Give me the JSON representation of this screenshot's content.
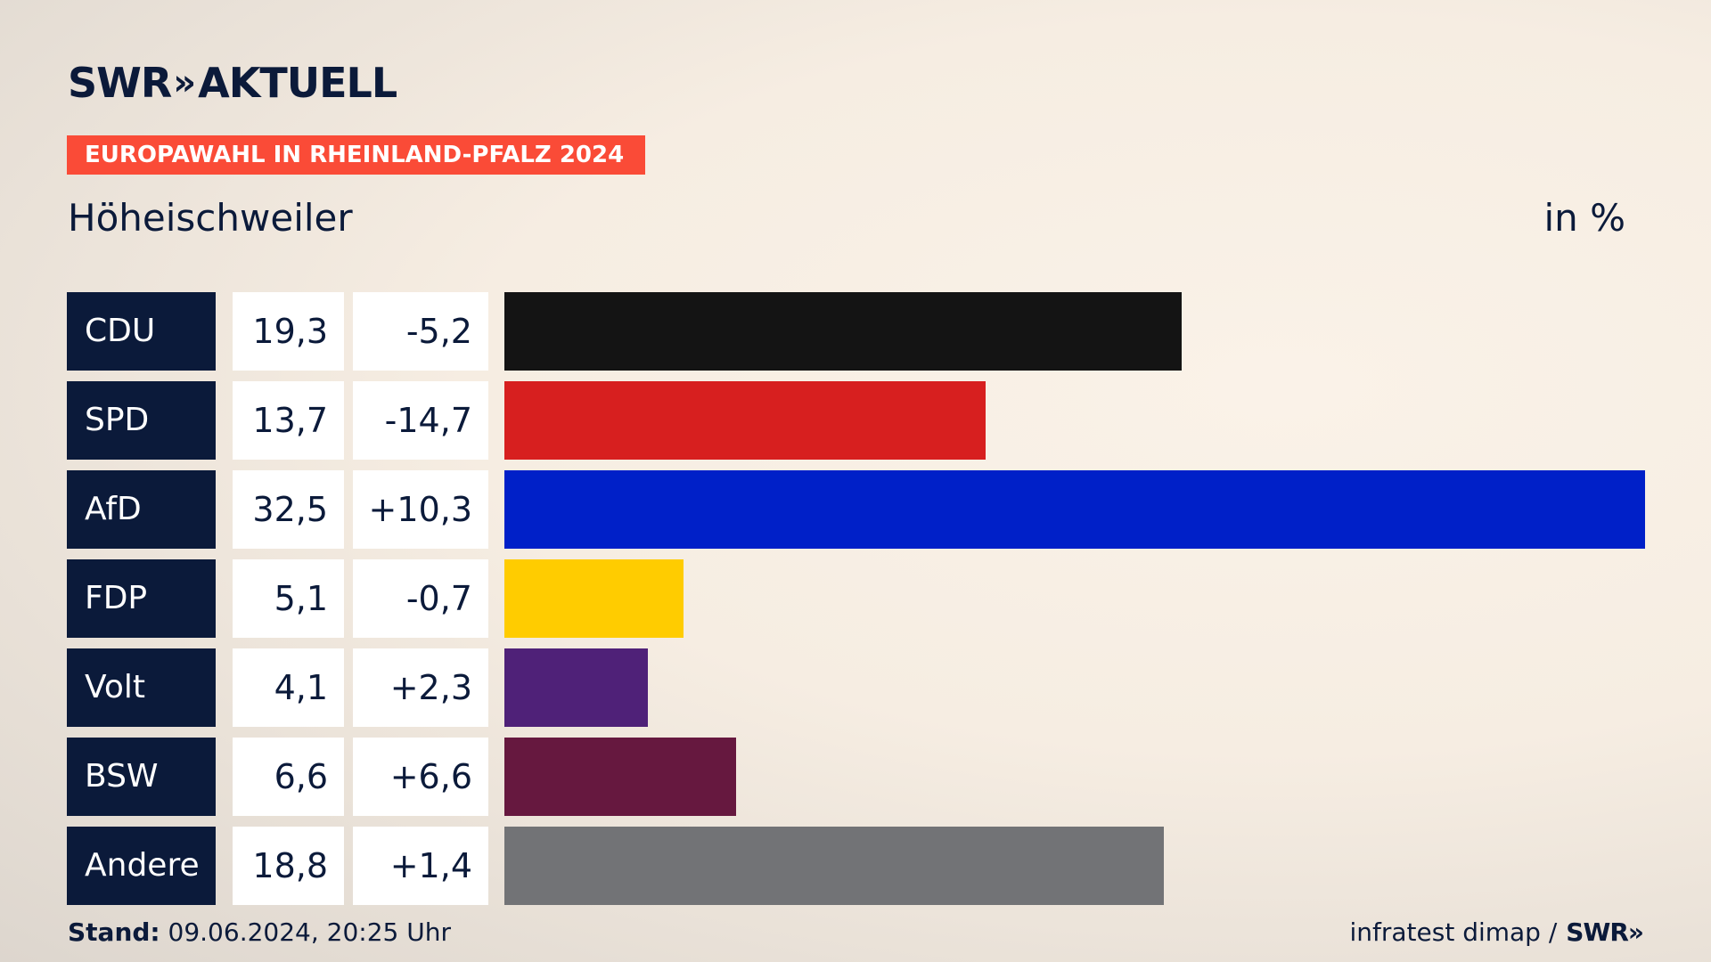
{
  "header": {
    "logo_text": "SWR",
    "logo_chevrons": "»",
    "logo_suffix": "AKTUELL",
    "banner": "EUROPAWAHL IN RHEINLAND-PFALZ 2024",
    "region": "Höheischweiler",
    "unit": "in %"
  },
  "chart_data": {
    "type": "bar",
    "orientation": "horizontal",
    "title": "EUROPAWAHL IN RHEINLAND-PFALZ 2024",
    "subtitle": "Höheischweiler",
    "unit": "in %",
    "categories": [
      "CDU",
      "SPD",
      "AfD",
      "FDP",
      "Volt",
      "BSW",
      "Andere"
    ],
    "values": [
      19.3,
      13.7,
      32.5,
      5.1,
      4.1,
      6.6,
      18.8
    ],
    "value_labels": [
      "19,3",
      "13,7",
      "32,5",
      "5,1",
      "4,1",
      "6,6",
      "18,8"
    ],
    "change_labels": [
      "-5,2",
      "-14,7",
      "+10,3",
      "-0,7",
      "+2,3",
      "+6,6",
      "+1,4"
    ],
    "colors": [
      "#141414",
      "#d71f1f",
      "#0020c8",
      "#ffcc00",
      "#4f2178",
      "#66183f",
      "#727376"
    ],
    "xlim": [
      0,
      32.5
    ]
  },
  "footer": {
    "stand_label": "Stand:",
    "stand_value": "09.06.2024, 20:25 Uhr",
    "source": "infratest dimap /",
    "source_logo": "SWR»"
  }
}
